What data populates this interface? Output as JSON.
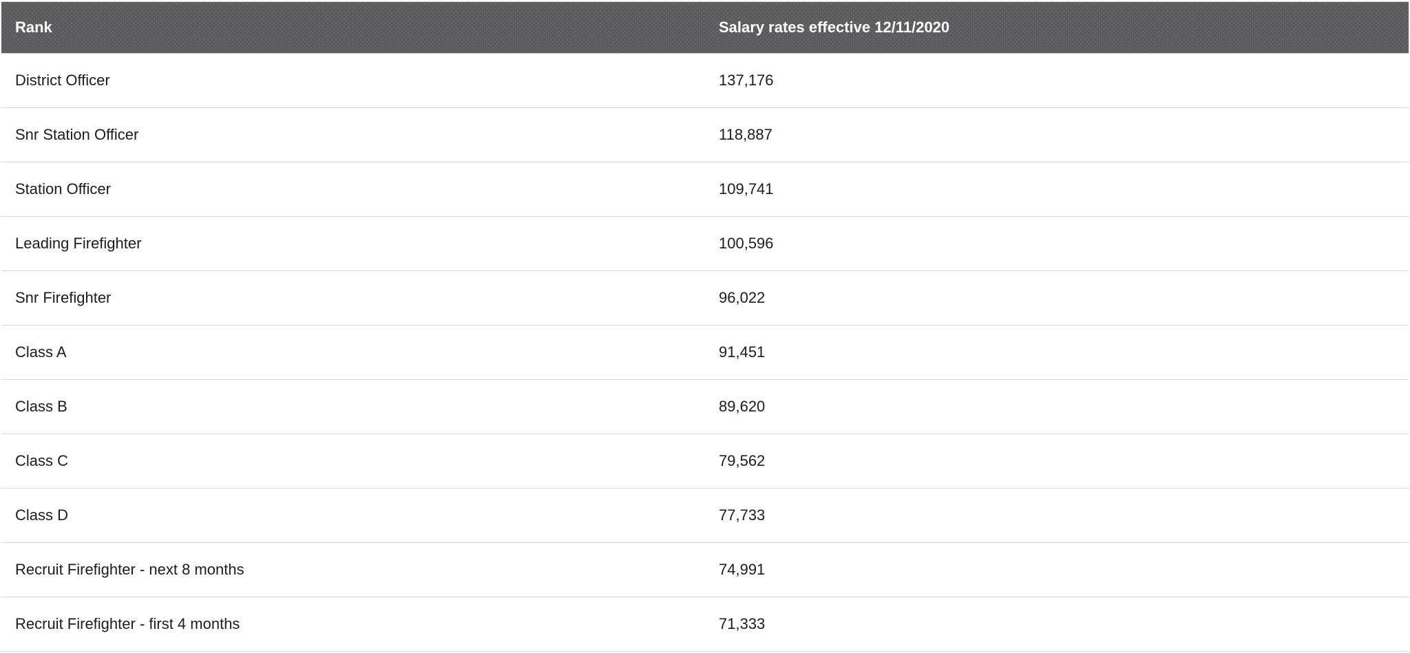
{
  "chart_data": {
    "type": "table",
    "title": "Salary rates effective 12/11/2020",
    "columns": [
      "Rank",
      "Salary rates effective 12/11/2020"
    ],
    "rows": [
      {
        "rank": "District Officer",
        "salary": "137,176"
      },
      {
        "rank": "Snr Station Officer",
        "salary": "118,887"
      },
      {
        "rank": "Station Officer",
        "salary": "109,741"
      },
      {
        "rank": "Leading Firefighter",
        "salary": "100,596"
      },
      {
        "rank": "Snr Firefighter",
        "salary": "96,022"
      },
      {
        "rank": "Class A",
        "salary": "91,451"
      },
      {
        "rank": "Class B",
        "salary": "89,620"
      },
      {
        "rank": "Class C",
        "salary": "79,562"
      },
      {
        "rank": "Class D",
        "salary": "77,733"
      },
      {
        "rank": "Recruit Firefighter - next 8 months",
        "salary": "74,991"
      },
      {
        "rank": "Recruit Firefighter - first 4 months",
        "salary": "71,333"
      }
    ]
  },
  "table": {
    "header": {
      "rank_label": "Rank",
      "salary_label": "Salary rates effective 12/11/2020"
    }
  },
  "colors": {
    "header_bg": "#58595b",
    "header_text": "#ffffff",
    "row_text": "#1c1c1c",
    "divider": "#d9d9d9",
    "row_bg": "#ffffff"
  }
}
